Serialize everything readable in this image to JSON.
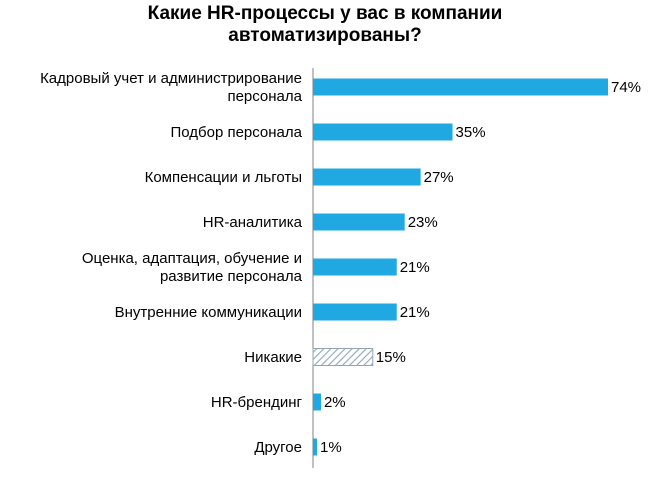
{
  "chart_data": {
    "type": "bar",
    "orientation": "horizontal",
    "title": [
      "Какие HR-процессы у вас в компании",
      "автоматизированы?"
    ],
    "categories": [
      [
        "Кадровый учет и администрирование",
        "персонала"
      ],
      [
        "Подбор персонала"
      ],
      [
        "Компенсации и льготы"
      ],
      [
        "HR-аналитика"
      ],
      [
        "Оценка, адаптация, обучение и",
        "развитие персонала"
      ],
      [
        "Внутренние коммуникации"
      ],
      [
        "Никакие"
      ],
      [
        "HR-брендинг"
      ],
      [
        "Другое"
      ]
    ],
    "values": [
      74,
      35,
      27,
      23,
      21,
      21,
      15,
      2,
      1
    ],
    "value_labels": [
      "74%",
      "35%",
      "27%",
      "23%",
      "21%",
      "21%",
      "15%",
      "2%",
      "1%"
    ],
    "bar_style": [
      "solid",
      "solid",
      "solid",
      "solid",
      "solid",
      "solid",
      "hatched",
      "solid",
      "solid"
    ],
    "bar_color": "#1FA8E2",
    "hatch_color": "#8FA6B5",
    "xlim": [
      0,
      74
    ],
    "legend": "none",
    "grid": false
  }
}
